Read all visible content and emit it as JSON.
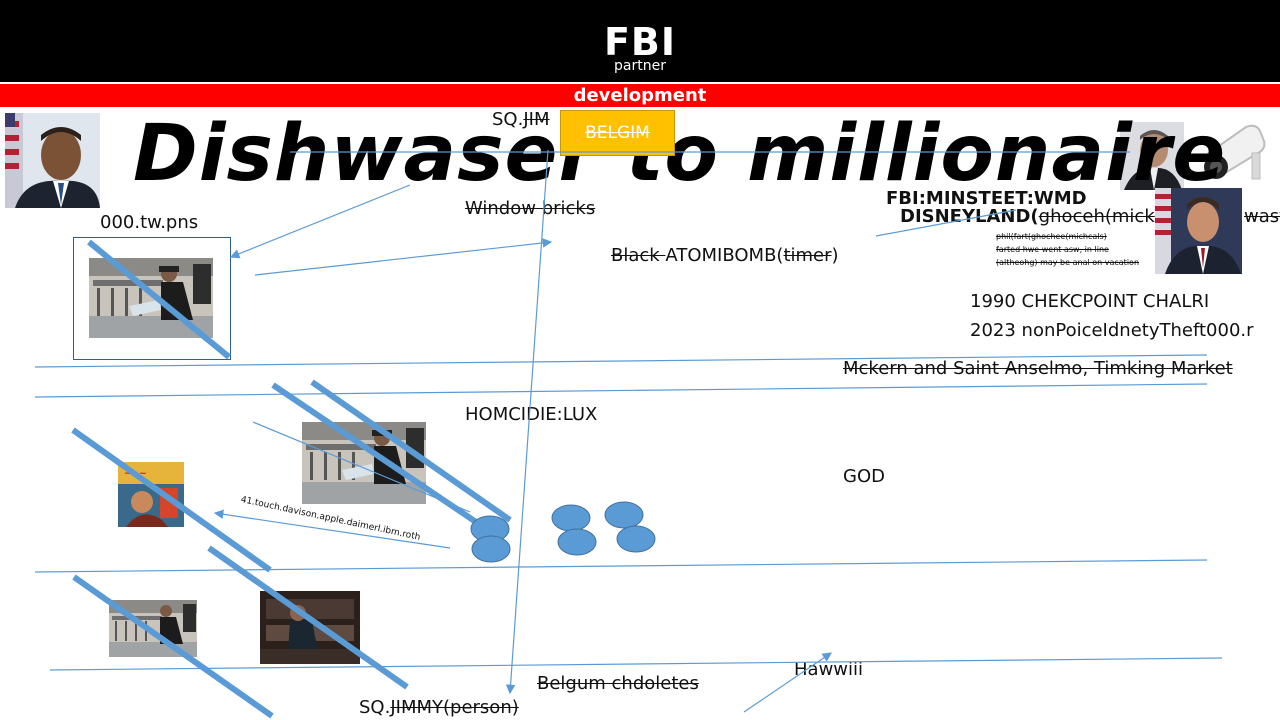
{
  "header": {
    "logo_main": "FBI",
    "logo_sub": "partner",
    "banner": "development"
  },
  "slide": {
    "title": "Dishwaser to millionaire",
    "badge": "BELGIM",
    "labels": {
      "sq_top_prefix": "SQ.",
      "sq_top_rest": "JIM",
      "tw": "000.tw.pns",
      "window_bricks": "Window bricks",
      "black": "Black ",
      "atomibomb": "ATOMIBOMB(",
      "timer": "timer",
      "close_paren": ")",
      "fbi_minsteet": "FBI:MINSTEET:WMD",
      "disneyland": "DISNEYLAND(",
      "ghoceh": "ghoceh(mick",
      "small_line1": "phil(fart(ghochee(michcals)",
      "small_line2": "farted hwe went asw, in line",
      "small_line3": "(altheohg) may be anal on vacation",
      "wasted_tail": "wast",
      "checkpoint": "1990 CHEKCPOINT CHALRI",
      "nonpolice": "2023 nonPoiceIdnetyTheft000.r",
      "mckern": "Mckern and Saint Anselmo, Timking Market",
      "homicide": "HOMCIDIE:LUX",
      "god": "GOD",
      "touch": "41.touch.davison.apple.daimerl.ibm.roth",
      "belgum": "Belgum chdoletes",
      "hawwiii": "Hawwiii",
      "sq_bottom_prefix": "SQ.",
      "sq_bottom_rest": "JIMMY(person)"
    }
  },
  "colors": {
    "accent_red": "#ff0000",
    "badge_fill": "#ffc000",
    "line_blue": "#5b9bd5",
    "thick_blue": "#5b9bd5",
    "circle_blue": "#5b9bd5",
    "header_black": "#000000"
  }
}
